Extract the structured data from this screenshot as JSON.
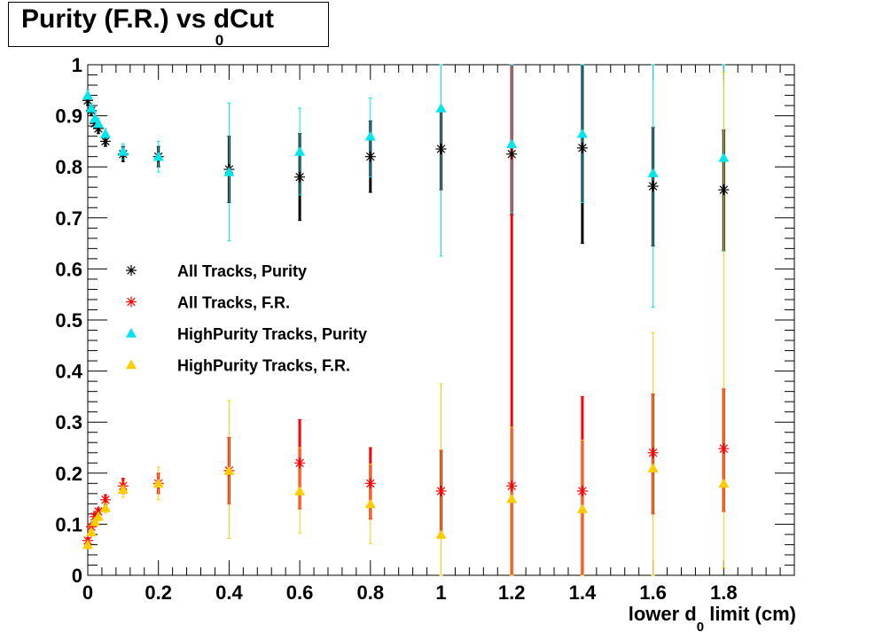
{
  "title": {
    "prefix": "Purity (F.R.) vs ",
    "symbol": "d",
    "subscript": "0",
    "suffix": "Cut"
  },
  "chart_data": {
    "type": "scatter",
    "title": "Purity (F.R.) vs d0 Cut",
    "xlabel": {
      "prefix": "lower d",
      "subscript": "0",
      "suffix": " limit (cm)"
    },
    "ylabel": "",
    "xlim": [
      0,
      2.0
    ],
    "ylim": [
      0,
      1
    ],
    "x_ticks": [
      0,
      0.2,
      0.4,
      0.6,
      0.8,
      1,
      1.2,
      1.4,
      1.6,
      1.8
    ],
    "x_tick_labels": [
      "0",
      "0.2",
      "0.4",
      "0.6",
      "0.8",
      "1",
      "1.2",
      "1.4",
      "1.6",
      "1.8"
    ],
    "y_ticks": [
      0,
      0.1,
      0.2,
      0.3,
      0.4,
      0.5,
      0.6,
      0.7,
      0.8,
      0.9,
      1
    ],
    "y_tick_labels": [
      "0",
      "0.1",
      "0.2",
      "0.3",
      "0.4",
      "0.5",
      "0.6",
      "0.7",
      "0.8",
      "0.9",
      "1"
    ],
    "grid": false,
    "legend_position": "center-left",
    "series": [
      {
        "name": "All Tracks, Purity",
        "marker": "star",
        "color": "#000000",
        "points": [
          {
            "x": 0.0,
            "y": 0.93,
            "lo": 0.92,
            "hi": 0.94
          },
          {
            "x": 0.01,
            "y": 0.91,
            "lo": 0.9,
            "hi": 0.92
          },
          {
            "x": 0.02,
            "y": 0.885,
            "lo": 0.875,
            "hi": 0.895
          },
          {
            "x": 0.03,
            "y": 0.875,
            "lo": 0.865,
            "hi": 0.885
          },
          {
            "x": 0.05,
            "y": 0.85,
            "lo": 0.84,
            "hi": 0.86
          },
          {
            "x": 0.1,
            "y": 0.825,
            "lo": 0.81,
            "hi": 0.84
          },
          {
            "x": 0.2,
            "y": 0.82,
            "lo": 0.8,
            "hi": 0.84
          },
          {
            "x": 0.4,
            "y": 0.795,
            "lo": 0.73,
            "hi": 0.86
          },
          {
            "x": 0.6,
            "y": 0.78,
            "lo": 0.695,
            "hi": 0.865
          },
          {
            "x": 0.8,
            "y": 0.82,
            "lo": 0.75,
            "hi": 0.89
          },
          {
            "x": 1.0,
            "y": 0.835,
            "lo": 0.755,
            "hi": 0.915
          },
          {
            "x": 1.2,
            "y": 0.825,
            "lo": 0.705,
            "hi": 1.0
          },
          {
            "x": 1.4,
            "y": 0.837,
            "lo": 0.65,
            "hi": 1.0
          },
          {
            "x": 1.6,
            "y": 0.762,
            "lo": 0.645,
            "hi": 0.877
          },
          {
            "x": 1.8,
            "y": 0.755,
            "lo": 0.635,
            "hi": 0.872
          }
        ]
      },
      {
        "name": "All Tracks, F.R.",
        "marker": "star",
        "color": "#ff0000",
        "points": [
          {
            "x": 0.0,
            "y": 0.068,
            "lo": 0.062,
            "hi": 0.074
          },
          {
            "x": 0.01,
            "y": 0.095,
            "lo": 0.088,
            "hi": 0.102
          },
          {
            "x": 0.02,
            "y": 0.115,
            "lo": 0.108,
            "hi": 0.122
          },
          {
            "x": 0.03,
            "y": 0.125,
            "lo": 0.118,
            "hi": 0.132
          },
          {
            "x": 0.05,
            "y": 0.148,
            "lo": 0.138,
            "hi": 0.158
          },
          {
            "x": 0.1,
            "y": 0.175,
            "lo": 0.16,
            "hi": 0.19
          },
          {
            "x": 0.2,
            "y": 0.18,
            "lo": 0.16,
            "hi": 0.2
          },
          {
            "x": 0.4,
            "y": 0.205,
            "lo": 0.14,
            "hi": 0.27
          },
          {
            "x": 0.6,
            "y": 0.22,
            "lo": 0.13,
            "hi": 0.305
          },
          {
            "x": 0.8,
            "y": 0.18,
            "lo": 0.11,
            "hi": 0.25
          },
          {
            "x": 1.0,
            "y": 0.165,
            "lo": 0.085,
            "hi": 0.245
          },
          {
            "x": 1.2,
            "y": 0.175,
            "lo": 0.0,
            "hi": 1.0
          },
          {
            "x": 1.4,
            "y": 0.165,
            "lo": 0.0,
            "hi": 0.35
          },
          {
            "x": 1.6,
            "y": 0.24,
            "lo": 0.12,
            "hi": 0.355
          },
          {
            "x": 1.8,
            "y": 0.248,
            "lo": 0.125,
            "hi": 0.365
          }
        ]
      },
      {
        "name": "HighPurity Tracks, Purity",
        "marker": "triangle",
        "color": "#00e5ee",
        "points": [
          {
            "x": 0.0,
            "y": 0.94,
            "lo": 0.93,
            "hi": 0.95
          },
          {
            "x": 0.01,
            "y": 0.915,
            "lo": 0.905,
            "hi": 0.925
          },
          {
            "x": 0.02,
            "y": 0.895,
            "lo": 0.885,
            "hi": 0.905
          },
          {
            "x": 0.03,
            "y": 0.885,
            "lo": 0.875,
            "hi": 0.895
          },
          {
            "x": 0.05,
            "y": 0.865,
            "lo": 0.855,
            "hi": 0.875
          },
          {
            "x": 0.1,
            "y": 0.83,
            "lo": 0.815,
            "hi": 0.845
          },
          {
            "x": 0.2,
            "y": 0.82,
            "lo": 0.79,
            "hi": 0.85
          },
          {
            "x": 0.4,
            "y": 0.79,
            "lo": 0.655,
            "hi": 0.925
          },
          {
            "x": 0.6,
            "y": 0.83,
            "lo": 0.745,
            "hi": 0.915
          },
          {
            "x": 0.8,
            "y": 0.86,
            "lo": 0.78,
            "hi": 0.935
          },
          {
            "x": 1.0,
            "y": 0.915,
            "lo": 0.625,
            "hi": 1.0
          },
          {
            "x": 1.2,
            "y": 0.845,
            "lo": 0.71,
            "hi": 1.0
          },
          {
            "x": 1.4,
            "y": 0.865,
            "lo": 0.73,
            "hi": 1.0
          },
          {
            "x": 1.6,
            "y": 0.788,
            "lo": 0.525,
            "hi": 1.0
          },
          {
            "x": 1.8,
            "y": 0.818,
            "lo": 0.635,
            "hi": 1.0
          }
        ]
      },
      {
        "name": "HighPurity Tracks, F.R.",
        "marker": "triangle",
        "color": "#ffcc00",
        "points": [
          {
            "x": 0.0,
            "y": 0.06,
            "lo": 0.052,
            "hi": 0.068
          },
          {
            "x": 0.01,
            "y": 0.085,
            "lo": 0.077,
            "hi": 0.093
          },
          {
            "x": 0.02,
            "y": 0.105,
            "lo": 0.097,
            "hi": 0.113
          },
          {
            "x": 0.03,
            "y": 0.115,
            "lo": 0.107,
            "hi": 0.123
          },
          {
            "x": 0.05,
            "y": 0.132,
            "lo": 0.122,
            "hi": 0.142
          },
          {
            "x": 0.1,
            "y": 0.168,
            "lo": 0.153,
            "hi": 0.183
          },
          {
            "x": 0.2,
            "y": 0.18,
            "lo": 0.148,
            "hi": 0.212
          },
          {
            "x": 0.4,
            "y": 0.205,
            "lo": 0.072,
            "hi": 0.342
          },
          {
            "x": 0.6,
            "y": 0.165,
            "lo": 0.083,
            "hi": 0.25
          },
          {
            "x": 0.8,
            "y": 0.14,
            "lo": 0.062,
            "hi": 0.218
          },
          {
            "x": 1.0,
            "y": 0.08,
            "lo": 0.0,
            "hi": 0.375
          },
          {
            "x": 1.2,
            "y": 0.15,
            "lo": 0.0,
            "hi": 0.29
          },
          {
            "x": 1.4,
            "y": 0.13,
            "lo": 0.0,
            "hi": 0.265
          },
          {
            "x": 1.6,
            "y": 0.21,
            "lo": 0.0,
            "hi": 0.475
          },
          {
            "x": 1.8,
            "y": 0.18,
            "lo": 0.015,
            "hi": 0.985
          }
        ]
      }
    ]
  }
}
